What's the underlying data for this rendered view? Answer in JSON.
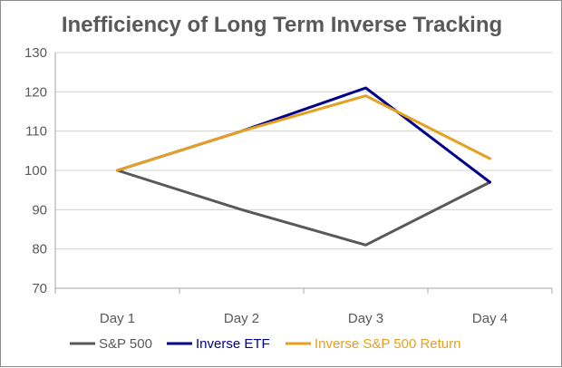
{
  "chart_data": {
    "type": "line",
    "title": "Inefficiency of Long Term Inverse Tracking",
    "xlabel": "",
    "ylabel": "",
    "categories": [
      "Day 1",
      "Day 2",
      "Day 3",
      "Day 4"
    ],
    "ylim": [
      70,
      130
    ],
    "yticks": [
      70,
      80,
      90,
      100,
      110,
      120,
      130
    ],
    "grid": true,
    "legend_position": "bottom",
    "series": [
      {
        "name": "S&P 500",
        "values": [
          100,
          90,
          81,
          97
        ],
        "color": "#595959"
      },
      {
        "name": "Inverse ETF",
        "values": [
          100,
          110,
          121,
          97
        ],
        "color": "#00008b"
      },
      {
        "name": "Inverse S&P 500 Return",
        "values": [
          100,
          110,
          119,
          103
        ],
        "color": "#e6a020"
      }
    ]
  }
}
